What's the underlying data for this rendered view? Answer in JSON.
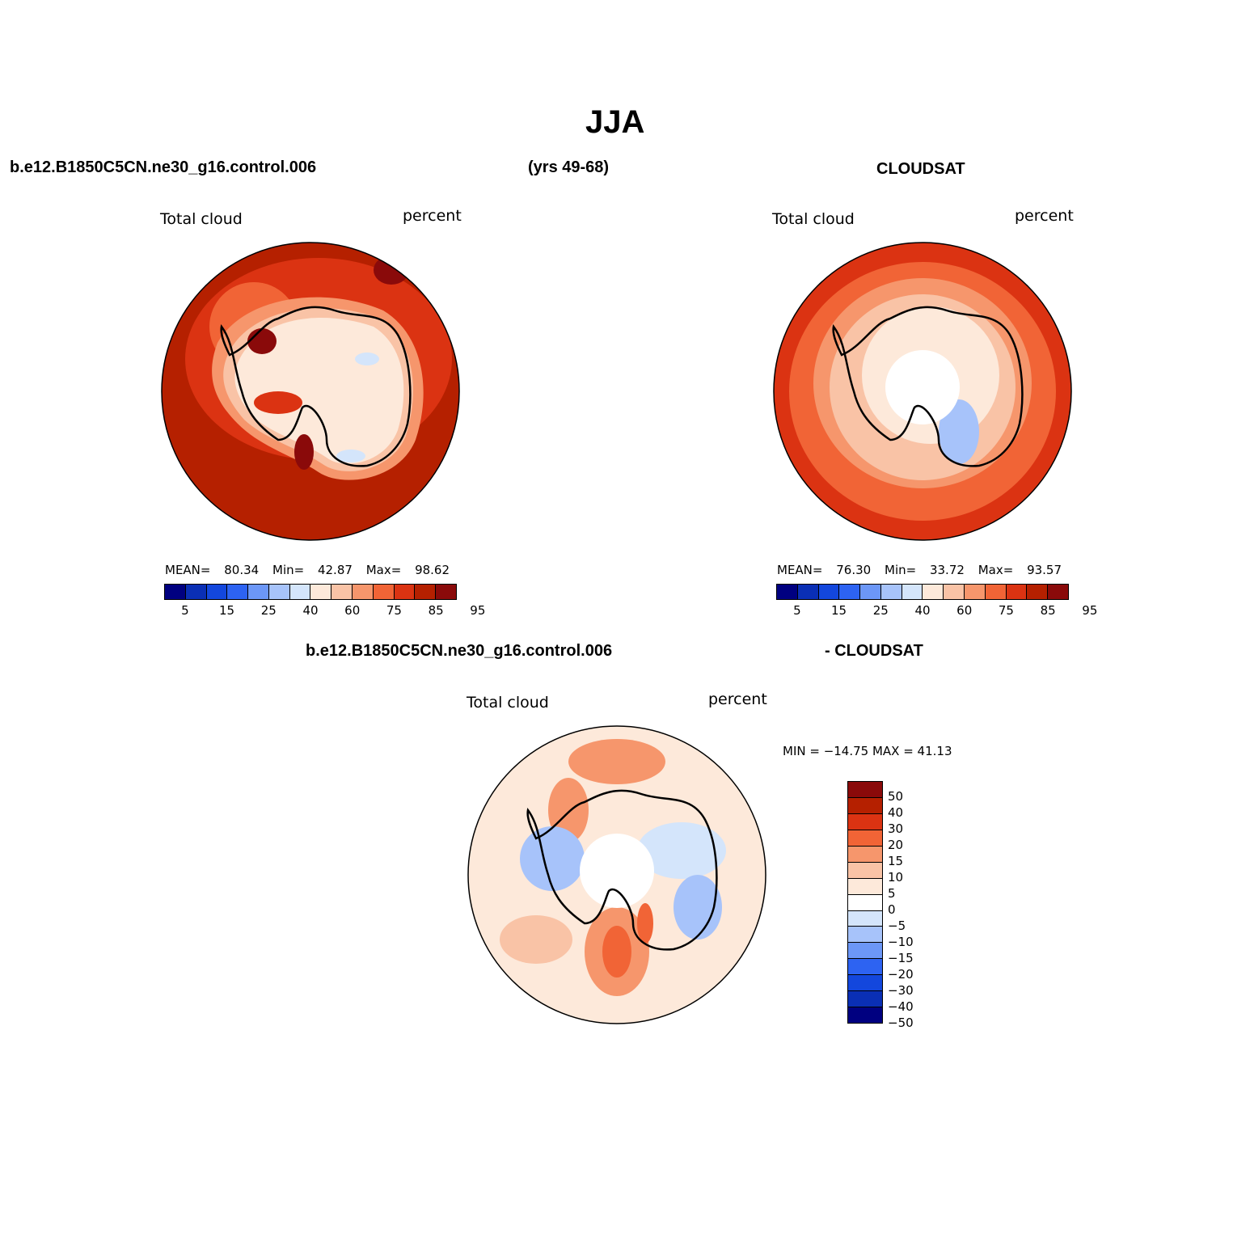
{
  "figure": {
    "title": "JJA",
    "case_name": "b.e12.B1850C5CN.ne30_g16.control.006",
    "years": "(yrs 49-68)",
    "obs_name": "CLOUDSAT",
    "diff_case": "b.e12.B1850C5CN.ne30_g16.control.006",
    "diff_obs": "- CLOUDSAT"
  },
  "panels": [
    {
      "id": "model",
      "left_label": "Total cloud",
      "right_label": "percent",
      "stats": {
        "mean_label": "MEAN=",
        "mean": "80.34",
        "min_label": "Min=",
        "min": "42.87",
        "max_label": "Max=",
        "max": "98.62"
      },
      "colorbar_ticks": [
        "5",
        "15",
        "25",
        "40",
        "60",
        "75",
        "85",
        "95"
      ]
    },
    {
      "id": "obs",
      "left_label": "Total cloud",
      "right_label": "percent",
      "stats": {
        "mean_label": "MEAN=",
        "mean": "76.30",
        "min_label": "Min=",
        "min": "33.72",
        "max_label": "Max=",
        "max": "93.57"
      },
      "colorbar_ticks": [
        "5",
        "15",
        "25",
        "40",
        "60",
        "75",
        "85",
        "95"
      ]
    },
    {
      "id": "diff",
      "left_label": "Total cloud",
      "right_label": "percent",
      "stats_text": "MIN = −14.75 MAX =   41.13",
      "colorbar_ticks": [
        "50",
        "40",
        "30",
        "20",
        "15",
        "10",
        "5",
        "0",
        "−5",
        "−10",
        "−15",
        "−20",
        "−30",
        "−40",
        "−50"
      ]
    }
  ],
  "colors": {
    "seq": [
      "#000080",
      "#0a2fb5",
      "#1347dd",
      "#2d63f2",
      "#6c97f7",
      "#a7c3fa",
      "#d4e5fb",
      "#fde9da",
      "#f9c3a6",
      "#f6966c",
      "#f16436",
      "#db3312",
      "#b52000",
      "#8a0a0a"
    ],
    "div": [
      "#8a0a0a",
      "#b52000",
      "#db3312",
      "#f16436",
      "#f6966c",
      "#f9c3a6",
      "#fde9da",
      "#ffffff",
      "#d4e5fb",
      "#a7c3fa",
      "#6c97f7",
      "#2d63f2",
      "#1347dd",
      "#0a2fb5",
      "#000080"
    ],
    "coast": "#000000"
  }
}
